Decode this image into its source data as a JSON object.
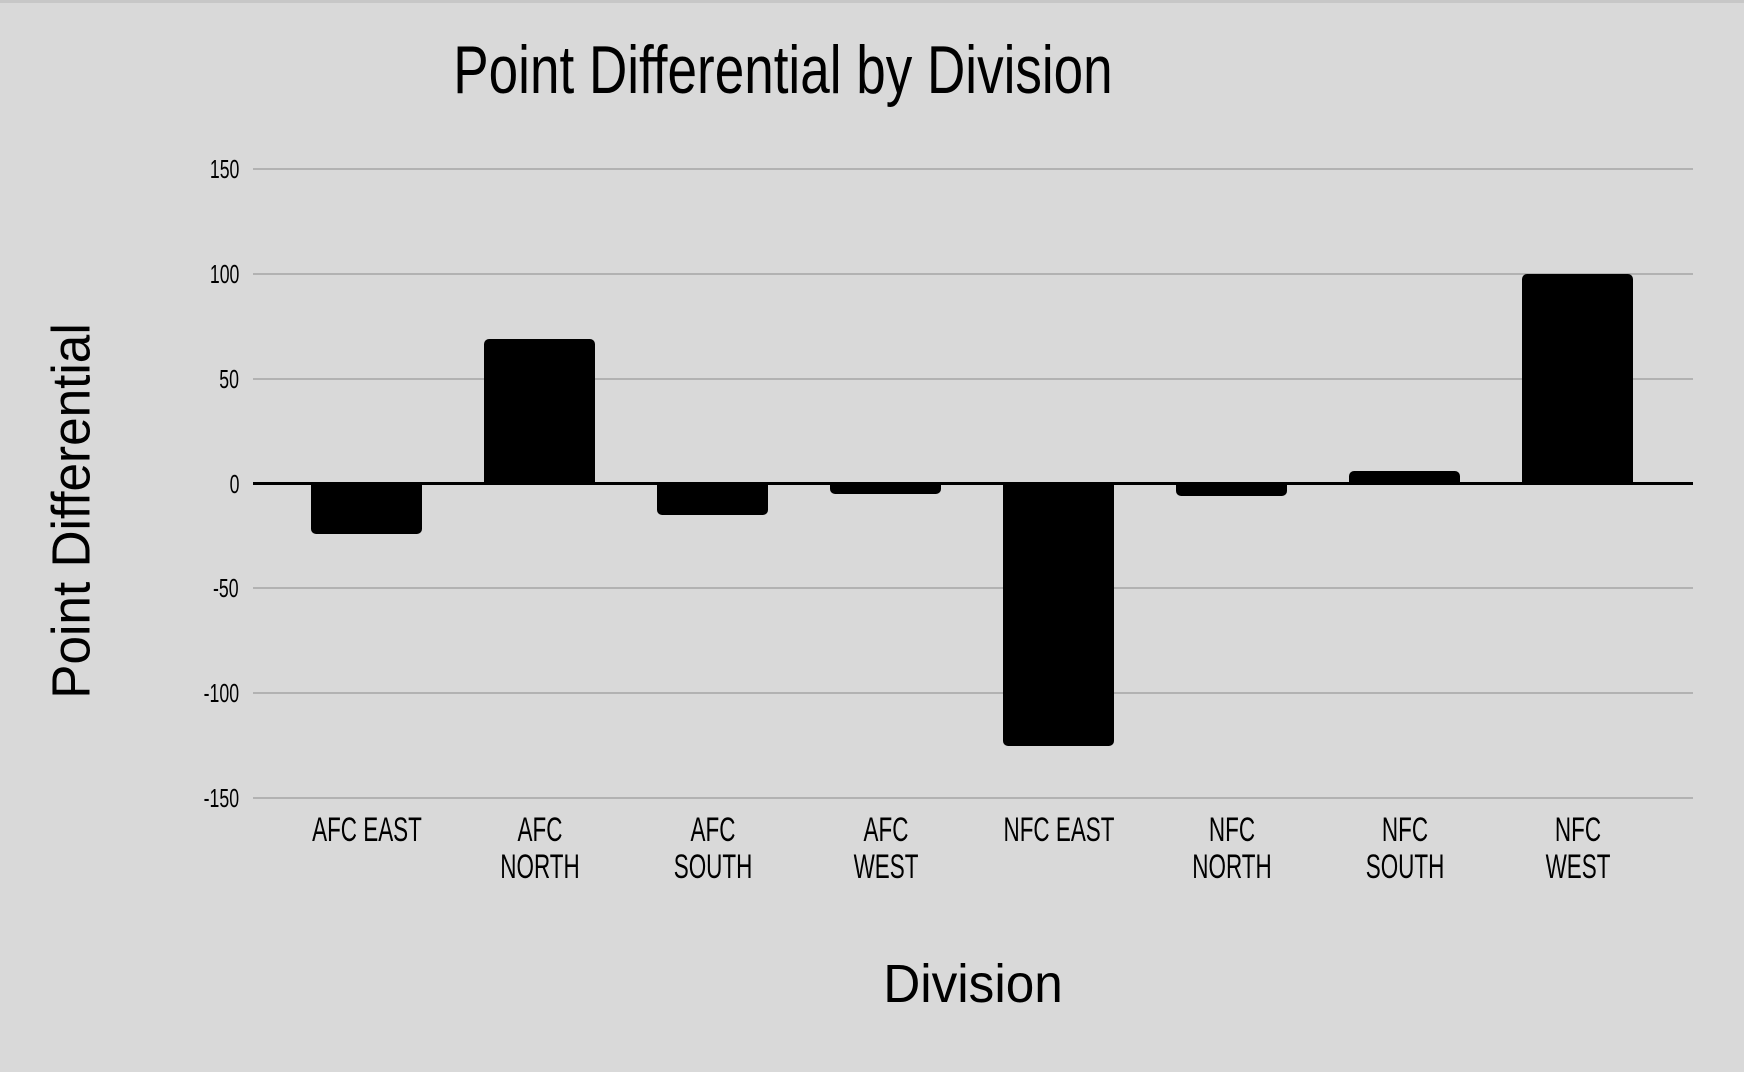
{
  "page": {
    "background": "#d9d9d9"
  },
  "chart_data": {
    "type": "bar",
    "title": "Point Differential by Division",
    "xlabel": "Division",
    "ylabel": "Point Differential",
    "categories": [
      "AFC EAST",
      "AFC NORTH",
      "AFC SOUTH",
      "AFC WEST",
      "NFC EAST",
      "NFC NORTH",
      "NFC SOUTH",
      "NFC WEST"
    ],
    "categories_display": [
      [
        "AFC EAST"
      ],
      [
        "AFC",
        "NORTH"
      ],
      [
        "AFC",
        "SOUTH"
      ],
      [
        "AFC",
        "WEST"
      ],
      [
        "NFC EAST"
      ],
      [
        "NFC",
        "NORTH"
      ],
      [
        "NFC",
        "SOUTH"
      ],
      [
        "NFC",
        "WEST"
      ]
    ],
    "values": [
      -24,
      69,
      -15,
      -5,
      -125,
      -6,
      6,
      100
    ],
    "ylim": [
      -150,
      150
    ],
    "yticks": [
      150,
      100,
      50,
      0,
      -50,
      -100,
      -150
    ],
    "grid": true,
    "legend": false,
    "bar_color": "#000000",
    "gridline_color": "#b2b2b2",
    "zero_line_color": "#000000",
    "background_color": "#d9d9d9",
    "text_color": "#000000"
  }
}
